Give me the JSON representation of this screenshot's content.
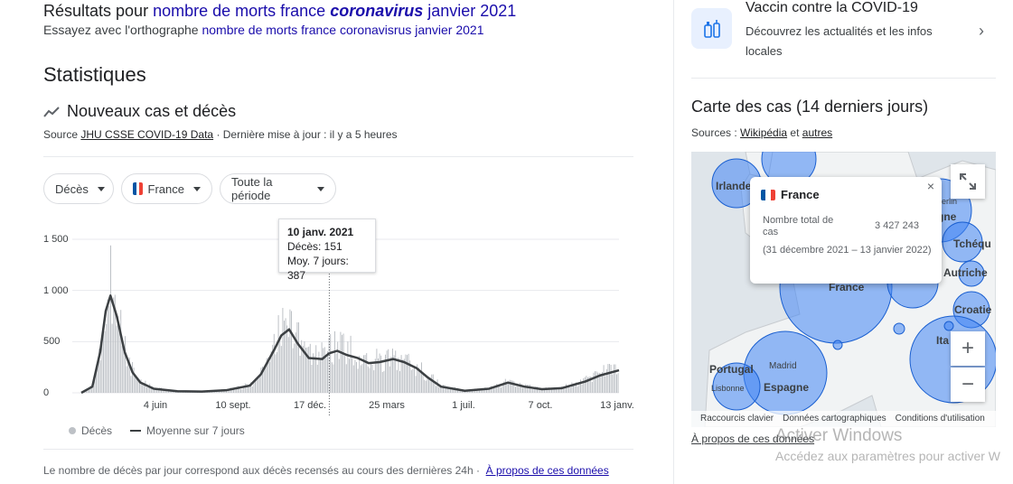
{
  "header": {
    "results_prefix": "Résultats pour",
    "results_query_part1": "nombre de morts france",
    "results_query_bold": "coronavirus",
    "results_query_part2": "janvier 2021",
    "try_prefix": "Essayez avec l'orthographe",
    "try_suggestion": "nombre de morts france coronavisrus janvier 2021"
  },
  "stats": {
    "title": "Statistiques",
    "subtitle": "Nouveaux cas et décès",
    "source_prefix": "Source",
    "source_link": "JHU CSSE COVID-19 Data",
    "updated": "· Dernière mise à jour : il y a 5 heures"
  },
  "filters": {
    "metric": "Décès",
    "country": "France",
    "period": "Toute la période"
  },
  "tooltip": {
    "date": "10 janv. 2021",
    "deaths": "Décès: 151",
    "avg": "Moy. 7 jours: 387"
  },
  "legend": {
    "bars": "Décès",
    "line": "Moyenne sur 7 jours"
  },
  "footer": {
    "note": "Le nombre de décès par jour correspond aux décès recensés au cours des dernières 24h ·",
    "link": "À propos de ces données"
  },
  "chart_data": {
    "type": "bar",
    "title": "Nouveaux cas et décès",
    "ylim": [
      0,
      1500
    ],
    "yticks": [
      "1 500",
      "1 000",
      "500",
      "0"
    ],
    "ytick_values": [
      1500,
      1000,
      500,
      0
    ],
    "xticks": [
      "4 juin",
      "10 sept.",
      "17 déc.",
      "25 mars",
      "1 juil.",
      "7 oct.",
      "13 janv."
    ],
    "series": [
      {
        "name": "Moyenne sur 7 jours",
        "type": "line",
        "color": "#3c4043",
        "x": [
          "2020-03-01",
          "2020-03-15",
          "2020-03-25",
          "2020-04-01",
          "2020-04-07",
          "2020-04-15",
          "2020-04-25",
          "2020-05-05",
          "2020-05-15",
          "2020-06-01",
          "2020-07-01",
          "2020-08-01",
          "2020-09-01",
          "2020-10-01",
          "2020-10-15",
          "2020-11-01",
          "2020-11-10",
          "2020-11-20",
          "2020-12-01",
          "2020-12-15",
          "2021-01-01",
          "2021-01-10",
          "2021-01-20",
          "2021-02-01",
          "2021-02-15",
          "2021-03-01",
          "2021-03-15",
          "2021-04-01",
          "2021-04-15",
          "2021-05-01",
          "2021-05-15",
          "2021-06-01",
          "2021-07-01",
          "2021-08-01",
          "2021-08-25",
          "2021-09-15",
          "2021-10-07",
          "2021-11-01",
          "2021-12-01",
          "2021-12-20",
          "2022-01-13"
        ],
        "values": [
          0,
          60,
          400,
          800,
          950,
          750,
          400,
          200,
          100,
          40,
          15,
          12,
          25,
          70,
          180,
          420,
          560,
          620,
          480,
          340,
          330,
          387,
          410,
          370,
          340,
          290,
          300,
          330,
          300,
          240,
          150,
          60,
          20,
          40,
          100,
          60,
          35,
          45,
          110,
          170,
          220
        ]
      },
      {
        "name": "Décès",
        "type": "bar",
        "color": "#bdc1c6"
      }
    ],
    "legend": [
      "Décès",
      "Moyenne sur 7 jours"
    ]
  },
  "sidebar": {
    "vaccine_title": "Vaccin contre la COVID-19",
    "vaccine_sub": "Découvrez les actualités et les infos locales",
    "map_title": "Carte des cas (14 derniers jours)",
    "sources_prefix": "Sources :",
    "sources_link1": "Wikipédia",
    "sources_and": "et",
    "sources_link2": "autres",
    "popup": {
      "country": "France",
      "label": "Nombre total de cas",
      "value": "3 427 243",
      "period": "(31 décembre 2021 – 13 janvier 2022)"
    },
    "map_labels": [
      "Irlande",
      "Portugal",
      "Lisbonne",
      "Madrid",
      "Espagne",
      "Tchéqu",
      "Autriche",
      "Croatie",
      "Ita",
      "France",
      "gne",
      "erlin"
    ],
    "map_footer": [
      "Raccourcis clavier",
      "Données cartographiques",
      "Conditions d'utilisation"
    ],
    "about_link": "À propos de ces données"
  },
  "watermark": {
    "line1": "Activer Windows",
    "line2": "Accédez aux paramètres pour activer W"
  },
  "colors": {
    "link": "#1a0dab",
    "bubble": "#4285f4",
    "bar": "#bdc1c6",
    "line": "#3c4043"
  }
}
